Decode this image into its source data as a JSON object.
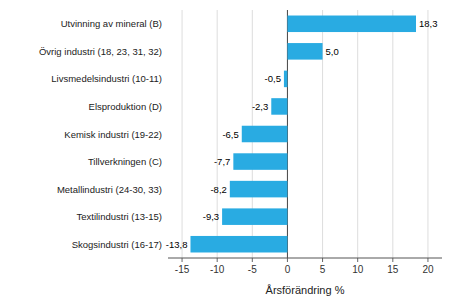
{
  "chart_data": {
    "type": "bar",
    "orientation": "horizontal",
    "categories": [
      "Skogsindustri (16-17)",
      "Textilindustri (13-15)",
      "Metallindustri (24-30, 33)",
      "Tillverkningen (C)",
      "Kemisk industri (19-22)",
      "Elsproduktion (D)",
      "Livsmedelsindustri (10-11)",
      "Övrig industri (18, 23, 31, 32)",
      "Utvinning av mineral (B)"
    ],
    "values": [
      -13.8,
      -9.3,
      -8.2,
      -7.7,
      -6.5,
      -2.3,
      -0.5,
      5.0,
      18.3
    ],
    "value_labels": [
      "-13,8",
      "-9,3",
      "-8,2",
      "-7,7",
      "-6,5",
      "-2,3",
      "-0,5",
      "5,0",
      "18,3"
    ],
    "data_labels": true,
    "color": "#29abe2",
    "xlabel": "Årsförändring %",
    "xlim": [
      -17,
      22
    ],
    "xticks": [
      -15,
      -10,
      -5,
      0,
      5,
      10,
      15,
      20
    ],
    "grid": true
  }
}
